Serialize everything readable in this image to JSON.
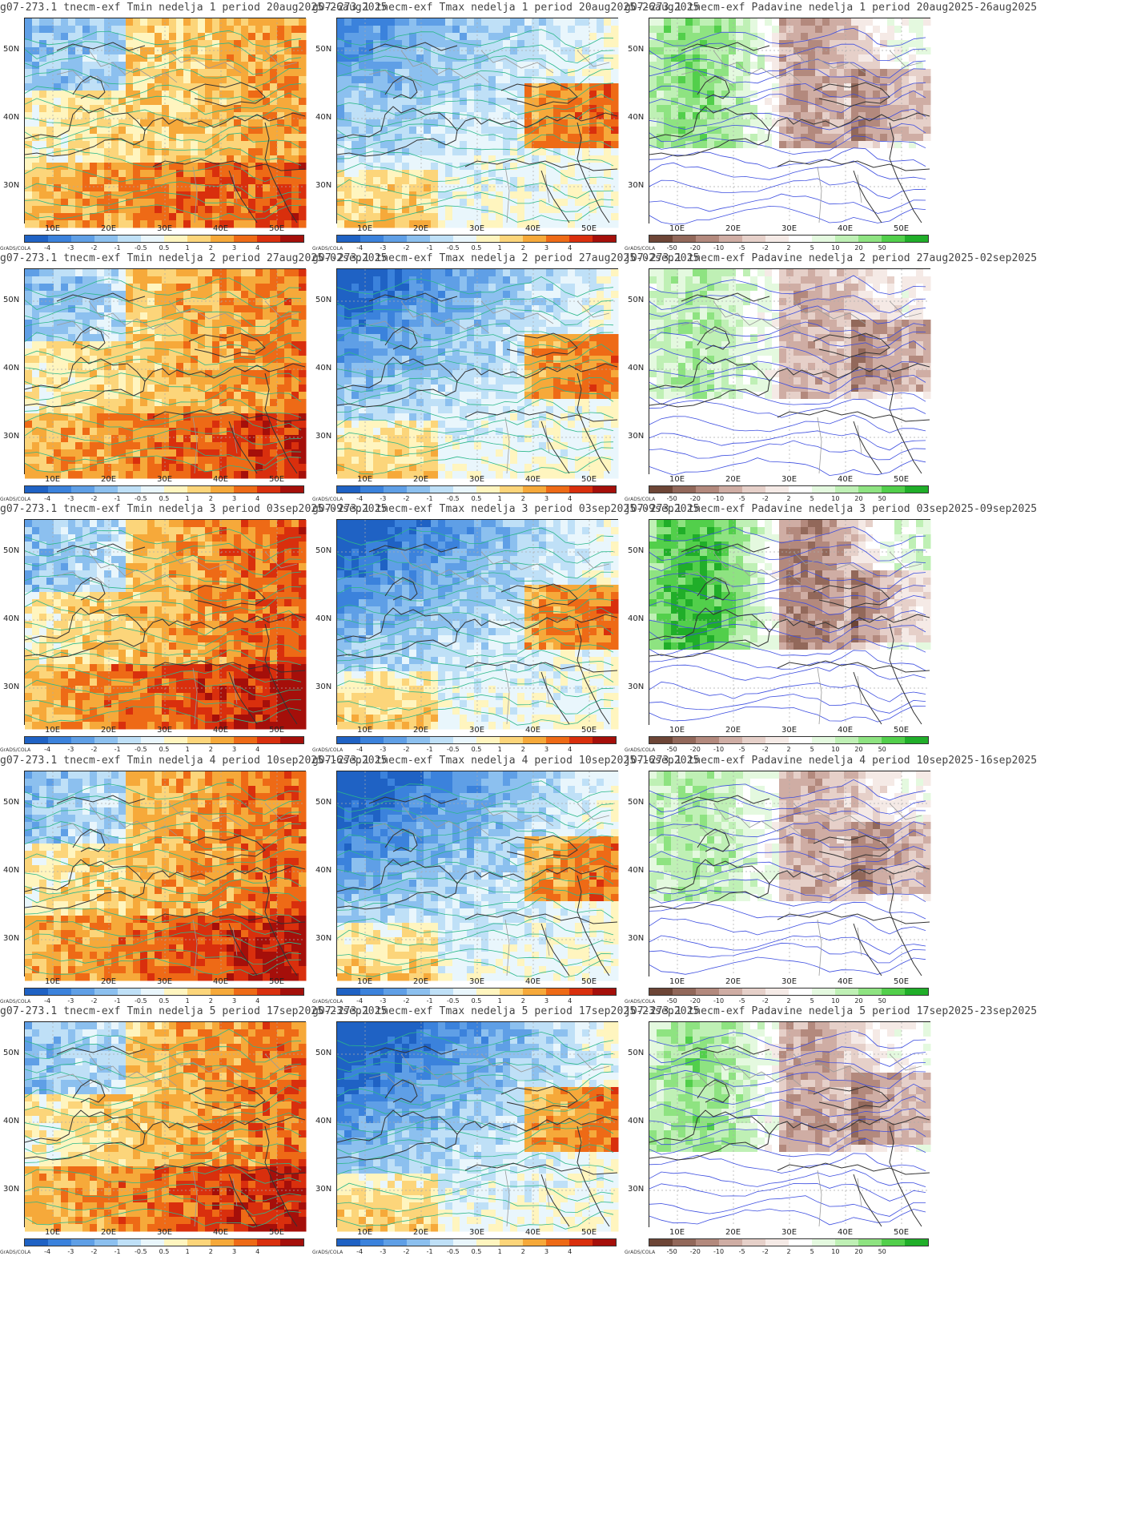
{
  "credit": "GrADS/COLA",
  "lat_labels": [
    "50N",
    "40N",
    "30N"
  ],
  "lon_labels": [
    "10E",
    "20E",
    "30E",
    "40E",
    "50E"
  ],
  "legends": {
    "temperature": {
      "ticks": [
        "-4",
        "-3",
        "-2",
        "-1",
        "-0.5",
        "0.5",
        "1",
        "2",
        "3",
        "4"
      ],
      "colors": [
        "#1f62c4",
        "#3b82dc",
        "#5f9fe6",
        "#8cc0ef",
        "#bfe0f7",
        "#e9f6fc",
        "#fff5bf",
        "#fcd57a",
        "#f6a93a",
        "#ee6a16",
        "#d92f0d",
        "#a50f0a"
      ]
    },
    "precipitation": {
      "ticks": [
        "-50",
        "-20",
        "-10",
        "-5",
        "-2",
        "2",
        "5",
        "10",
        "20",
        "50"
      ],
      "colors": [
        "#6d4536",
        "#92685a",
        "#b3897d",
        "#cfada4",
        "#e6d0c9",
        "#f5eae6",
        "#ffffff",
        "#e4f9df",
        "#bff0b5",
        "#8ee381",
        "#52cf4b",
        "#20ae29"
      ]
    }
  },
  "rows": [
    {
      "titles": [
        "g07-273.1 tnecm-exf Tmin nedelja 1 period 20aug2025-26aug2025",
        "g07-273.1 tnecm-exf Tmax nedelja 1 period 20aug2025-26aug2025",
        "g07-273.1 tnecm-exf Padavine nedelja 1 period 20aug2025-26aug2025"
      ]
    },
    {
      "titles": [
        "g07-273.1 tnecm-exf Tmin nedelja 2 period 27aug2025-02sep2025",
        "g07-273.1 tnecm-exf Tmax nedelja 2 period 27aug2025-02sep2025",
        "j07-273.1 tnecm-exf Padavine nedelja 2 period 27aug2025-02sep2025"
      ]
    },
    {
      "titles": [
        "g07-273.1 tnecm-exf Tmin nedelja 3 period 03sep2025-09sep2025",
        "g07-273.1 tnecm-exf Tmax nedelja 3 period 03sep2025-09sep2025",
        "j07-273.1 tnecm-exf Padavine nedelja 3 period 03sep2025-09sep2025"
      ]
    },
    {
      "titles": [
        "g07-273.1 tnecm-exf Tmin nedelja 4 period 10sep2025-16sep2025",
        "g07-273.1 tnecm-exf Tmax nedelja 4 period 10sep2025-16sep2025",
        "j07-273.1 tnecm-exf Padavine nedelja 4 period 10sep2025-16sep2025"
      ]
    },
    {
      "titles": [
        "g07-273.1 tnecm-exf Tmin nedelja 5 period 17sep2025-23sep2025",
        "g07-273.1 tnecm-exf Tmax nedelja 5 period 17sep2025-23sep2025",
        "j07-273.1 tnecm-exf Padavine nedelja 5 period 17sep2025-23sep2025"
      ]
    }
  ],
  "maps": [
    [
      {
        "type": "tmin",
        "bg": "#fcd57a",
        "hot": 0.55
      },
      {
        "type": "tmax",
        "bg": "#e9f6fc",
        "cold": 0.55
      },
      {
        "type": "prec",
        "wet": 0.6
      }
    ],
    [
      {
        "type": "tmin",
        "bg": "#f6a93a",
        "hot": 0.7
      },
      {
        "type": "tmax",
        "bg": "#e9f6fc",
        "cold": 0.75
      },
      {
        "type": "prec",
        "wet": 0.4
      }
    ],
    [
      {
        "type": "tmin",
        "bg": "#f6a93a",
        "hot": 0.9
      },
      {
        "type": "tmax",
        "bg": "#e9f6fc",
        "cold": 0.8
      },
      {
        "type": "prec",
        "wet": 0.9
      }
    ],
    [
      {
        "type": "tmin",
        "bg": "#f6a93a",
        "hot": 0.85
      },
      {
        "type": "tmax",
        "bg": "#bfe0f7",
        "cold": 0.85
      },
      {
        "type": "prec",
        "wet": 0.45
      }
    ],
    [
      {
        "type": "tmin",
        "bg": "#fcd57a",
        "hot": 0.8
      },
      {
        "type": "tmax",
        "bg": "#8cc0ef",
        "cold": 0.9
      },
      {
        "type": "prec",
        "wet": 0.55
      }
    ]
  ]
}
